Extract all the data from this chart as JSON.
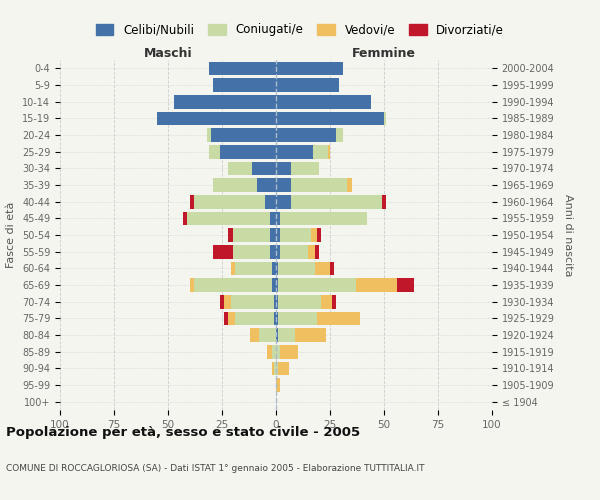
{
  "age_groups": [
    "100+",
    "95-99",
    "90-94",
    "85-89",
    "80-84",
    "75-79",
    "70-74",
    "65-69",
    "60-64",
    "55-59",
    "50-54",
    "45-49",
    "40-44",
    "35-39",
    "30-34",
    "25-29",
    "20-24",
    "15-19",
    "10-14",
    "5-9",
    "0-4"
  ],
  "birth_years": [
    "≤ 1904",
    "1905-1909",
    "1910-1914",
    "1915-1919",
    "1920-1924",
    "1925-1929",
    "1930-1934",
    "1935-1939",
    "1940-1944",
    "1945-1949",
    "1950-1954",
    "1955-1959",
    "1960-1964",
    "1965-1969",
    "1970-1974",
    "1975-1979",
    "1980-1984",
    "1985-1989",
    "1990-1994",
    "1995-1999",
    "2000-2004"
  ],
  "male_celibi": [
    0,
    0,
    0,
    0,
    0,
    1,
    1,
    2,
    2,
    3,
    3,
    3,
    5,
    9,
    11,
    26,
    30,
    55,
    47,
    29,
    31
  ],
  "male_coniugati": [
    0,
    0,
    1,
    2,
    8,
    18,
    20,
    36,
    17,
    17,
    17,
    38,
    33,
    20,
    11,
    5,
    2,
    0,
    0,
    0,
    0
  ],
  "male_vedovi": [
    0,
    0,
    1,
    2,
    4,
    3,
    3,
    2,
    2,
    0,
    0,
    0,
    0,
    0,
    0,
    0,
    0,
    0,
    0,
    0,
    0
  ],
  "male_divorziati": [
    0,
    0,
    0,
    0,
    0,
    2,
    2,
    0,
    0,
    9,
    2,
    2,
    2,
    0,
    0,
    0,
    0,
    0,
    0,
    0,
    0
  ],
  "female_celibi": [
    0,
    0,
    0,
    0,
    1,
    1,
    1,
    1,
    1,
    2,
    2,
    2,
    7,
    7,
    7,
    17,
    28,
    50,
    44,
    29,
    31
  ],
  "female_coniugati": [
    0,
    0,
    1,
    2,
    8,
    18,
    20,
    36,
    17,
    13,
    14,
    40,
    42,
    26,
    13,
    7,
    3,
    1,
    0,
    0,
    0
  ],
  "female_vedovi": [
    0,
    2,
    5,
    8,
    14,
    20,
    5,
    19,
    7,
    3,
    3,
    0,
    0,
    2,
    0,
    1,
    0,
    0,
    0,
    0,
    0
  ],
  "female_divorziati": [
    0,
    0,
    0,
    0,
    0,
    0,
    2,
    8,
    2,
    2,
    2,
    0,
    2,
    0,
    0,
    0,
    0,
    0,
    0,
    0,
    0
  ],
  "color_celibi": "#4472a8",
  "color_coniugati": "#c8dba4",
  "color_vedovi": "#f0c060",
  "color_divorziati": "#c0182a",
  "xlim": 100,
  "title": "Popolazione per età, sesso e stato civile - 2005",
  "subtitle": "COMUNE DI ROCCAGLORIOSA (SA) - Dati ISTAT 1° gennaio 2005 - Elaborazione TUTTITALIA.IT",
  "ylabel_left": "Fasce di età",
  "ylabel_right": "Anni di nascita",
  "xlabel_maschi": "Maschi",
  "xlabel_femmine": "Femmine",
  "bg_color": "#f5f5f0",
  "grid_color": "#bbbbbb"
}
